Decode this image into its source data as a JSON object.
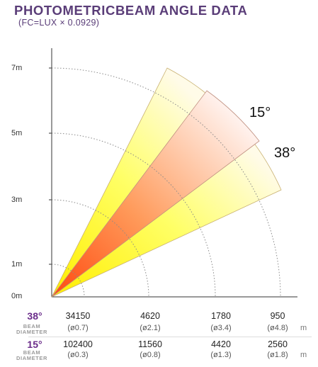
{
  "title": "PHOTOMETRICBEAM ANGLE DATA",
  "subtitle": "(FC=LUX × 0.0929)",
  "colors": {
    "title": "#5a3d78",
    "subtitle": "#5a3d78",
    "angle_label": "#6a2c8a",
    "outer_beam": "#ffff33",
    "inner_beam": "#ff6a1a"
  },
  "chart_data": {
    "type": "diagram",
    "distance_labels": [
      "7m",
      "5m",
      "3m",
      "1m",
      "0m"
    ],
    "beam_labels": [
      "15°",
      "38°"
    ],
    "rows": [
      {
        "angle": "38°",
        "label_line1": "BEAM",
        "label_line2": "DIAMETER",
        "lux": [
          "34150",
          "4620",
          "1780",
          "950"
        ],
        "diameter": [
          "(ø0.7)",
          "(ø2.1)",
          "(ø3.4)",
          "(ø4.8)"
        ],
        "unit": "m"
      },
      {
        "angle": "15°",
        "label_line1": "BEAM",
        "label_line2": "DIAMETER",
        "lux": [
          "102400",
          "11560",
          "4420",
          "2560"
        ],
        "diameter": [
          "(ø0.3)",
          "(ø0.8)",
          "(ø1.3)",
          "(ø1.8)"
        ],
        "unit": "m"
      }
    ]
  }
}
